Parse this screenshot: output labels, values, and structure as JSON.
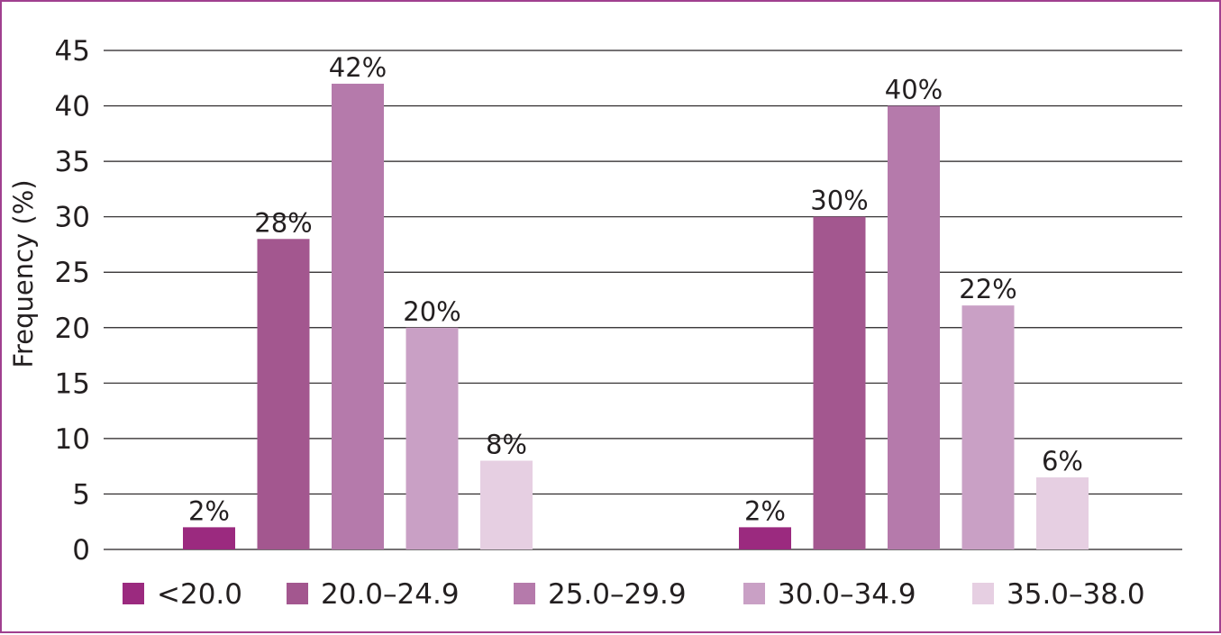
{
  "chart_data": {
    "type": "bar",
    "title": "",
    "xlabel": "",
    "ylabel": "Frequency (%)",
    "ylim": [
      0,
      45
    ],
    "yticks": [
      0,
      5,
      10,
      15,
      20,
      25,
      30,
      35,
      40,
      45
    ],
    "grid": true,
    "legend_position": "bottom",
    "groups": 2,
    "series": [
      {
        "name": "<20.0",
        "values": [
          2,
          2
        ],
        "labels": [
          "2%",
          "2%"
        ],
        "color": "#9b2a7f"
      },
      {
        "name": "20.0–24.9",
        "values": [
          28,
          30
        ],
        "labels": [
          "28%",
          "30%"
        ],
        "color": "#a3578f"
      },
      {
        "name": "25.0–29.9",
        "values": [
          42,
          40
        ],
        "labels": [
          "42%",
          "40%"
        ],
        "color": "#b57aab"
      },
      {
        "name": "30.0–34.9",
        "values": [
          20,
          22
        ],
        "labels": [
          "20%",
          "22%"
        ],
        "color": "#c9a0c5"
      },
      {
        "name": "35.0–38.0",
        "values": [
          8,
          6.5
        ],
        "labels": [
          "8%",
          "6%"
        ],
        "color": "#e6cfe2"
      }
    ]
  }
}
